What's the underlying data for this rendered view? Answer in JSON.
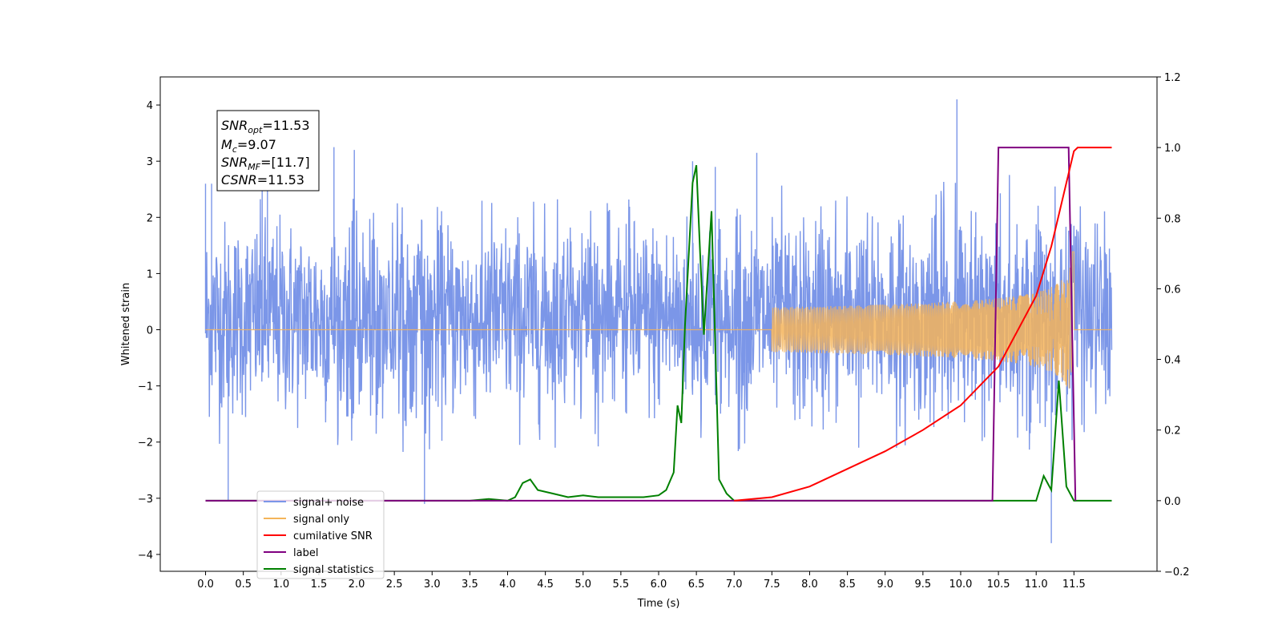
{
  "chart_data": {
    "type": "line",
    "xlabel": "Time (s)",
    "ylabel": "Whitened strain",
    "xlim": [
      -0.6,
      12.6
    ],
    "ylim": [
      -4.3,
      4.5
    ],
    "ylim_right": [
      -0.2,
      1.2
    ],
    "x_ticks": [
      "0.0",
      "0.5",
      "1.0",
      "1.5",
      "2.0",
      "2.5",
      "3.0",
      "3.5",
      "4.0",
      "4.5",
      "5.0",
      "5.5",
      "6.0",
      "6.5",
      "7.0",
      "7.5",
      "8.0",
      "8.5",
      "9.0",
      "9.5",
      "10.0",
      "10.5",
      "11.0",
      "11.5"
    ],
    "y_ticks_left": [
      "4",
      "3",
      "2",
      "1",
      "0",
      "−1",
      "−2",
      "−3",
      "−4"
    ],
    "y_ticks_right": [
      "1.2",
      "1.0",
      "0.8",
      "0.6",
      "0.4",
      "0.2",
      "0.0",
      "−0.2"
    ],
    "grid": false,
    "legend_placement": "lower-left",
    "annotation": {
      "snr_opt": {
        "base": "SNR",
        "sub": "opt",
        "value": "=11.53"
      },
      "mc": {
        "base": "M",
        "sub": "c",
        "value": "=9.07"
      },
      "snr_mf": {
        "base": "SNR",
        "sub": "MF",
        "value": "=[11.7]"
      },
      "csnr": {
        "base": "CSNR",
        "value": "=11.53"
      }
    },
    "series": [
      {
        "name": "signal+ noise",
        "color": "#7b96e8",
        "axis": "left",
        "x_range": [
          0.0,
          12.0
        ],
        "typical_band": [
          -1.4,
          1.8
        ],
        "spikes": [
          [
            0.0,
            2.6
          ],
          [
            0.08,
            2.6
          ],
          [
            0.3,
            -3.05
          ],
          [
            0.75,
            3.0
          ],
          [
            0.82,
            2.7
          ],
          [
            1.7,
            3.25
          ],
          [
            1.97,
            3.2
          ],
          [
            2.9,
            -3.1
          ],
          [
            6.45,
            3.0
          ],
          [
            6.75,
            2.9
          ],
          [
            7.3,
            3.15
          ],
          [
            9.95,
            4.1
          ],
          [
            11.2,
            -3.8
          ]
        ],
        "envelope_growth_from_x": 7.5,
        "envelope_peak_x": 11.5,
        "envelope_peak": 2.8
      },
      {
        "name": "signal only",
        "color": "#f4b45a",
        "axis": "left",
        "x_range": [
          0.0,
          12.0
        ],
        "value_flat": 0,
        "chirp_start_x": 7.5,
        "chirp_peak_x": 11.5,
        "chirp_peak_amplitude": 1.5
      },
      {
        "name": "cumilative SNR",
        "color": "#ff0000",
        "axis": "right",
        "points": [
          [
            7.0,
            0.0
          ],
          [
            7.5,
            0.01
          ],
          [
            8.0,
            0.04
          ],
          [
            8.5,
            0.09
          ],
          [
            9.0,
            0.14
          ],
          [
            9.5,
            0.2
          ],
          [
            10.0,
            0.27
          ],
          [
            10.5,
            0.38
          ],
          [
            11.0,
            0.58
          ],
          [
            11.2,
            0.72
          ],
          [
            11.4,
            0.9
          ],
          [
            11.5,
            0.99
          ],
          [
            11.55,
            1.0
          ],
          [
            12.0,
            1.0
          ]
        ]
      },
      {
        "name": "label",
        "color": "#800080",
        "axis": "right",
        "points": [
          [
            0.0,
            0.0
          ],
          [
            10.42,
            0.0
          ],
          [
            10.5,
            1.0
          ],
          [
            11.43,
            1.0
          ],
          [
            11.52,
            0.0
          ]
        ]
      },
      {
        "name": "signal statistics",
        "color": "#008000",
        "axis": "right",
        "points": [
          [
            0.0,
            0.0
          ],
          [
            3.5,
            0.0
          ],
          [
            3.75,
            0.005
          ],
          [
            4.0,
            0.0
          ],
          [
            4.1,
            0.01
          ],
          [
            4.2,
            0.05
          ],
          [
            4.3,
            0.06
          ],
          [
            4.4,
            0.03
          ],
          [
            4.6,
            0.02
          ],
          [
            4.8,
            0.01
          ],
          [
            5.0,
            0.015
          ],
          [
            5.2,
            0.01
          ],
          [
            5.5,
            0.01
          ],
          [
            5.8,
            0.01
          ],
          [
            6.0,
            0.015
          ],
          [
            6.1,
            0.03
          ],
          [
            6.2,
            0.08
          ],
          [
            6.25,
            0.27
          ],
          [
            6.3,
            0.22
          ],
          [
            6.35,
            0.5
          ],
          [
            6.45,
            0.9
          ],
          [
            6.5,
            0.95
          ],
          [
            6.55,
            0.7
          ],
          [
            6.6,
            0.47
          ],
          [
            6.7,
            0.82
          ],
          [
            6.8,
            0.06
          ],
          [
            6.9,
            0.02
          ],
          [
            7.0,
            0.0
          ],
          [
            11.0,
            0.0
          ],
          [
            11.1,
            0.07
          ],
          [
            11.2,
            0.03
          ],
          [
            11.3,
            0.34
          ],
          [
            11.4,
            0.04
          ],
          [
            11.5,
            0.0
          ],
          [
            12.0,
            0.0
          ]
        ]
      }
    ]
  }
}
